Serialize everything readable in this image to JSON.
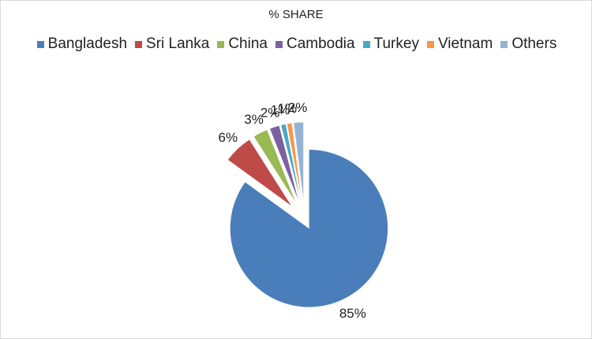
{
  "chart_data": {
    "type": "pie",
    "title": "% SHARE",
    "categories": [
      "Bangladesh",
      "Sri Lanka",
      "China",
      "Cambodia",
      "Turkey",
      "Vietnam",
      "Others"
    ],
    "values": [
      85,
      6,
      3,
      2,
      1,
      1,
      2
    ],
    "value_labels": [
      "85%",
      "6%",
      "3%",
      "2%",
      "1%",
      "1%",
      "2%"
    ],
    "colors": [
      "#4a7ebb",
      "#be4b48",
      "#98b954",
      "#7d60a0",
      "#46aac5",
      "#f79646",
      "#95b3d7"
    ],
    "legend": "top"
  }
}
